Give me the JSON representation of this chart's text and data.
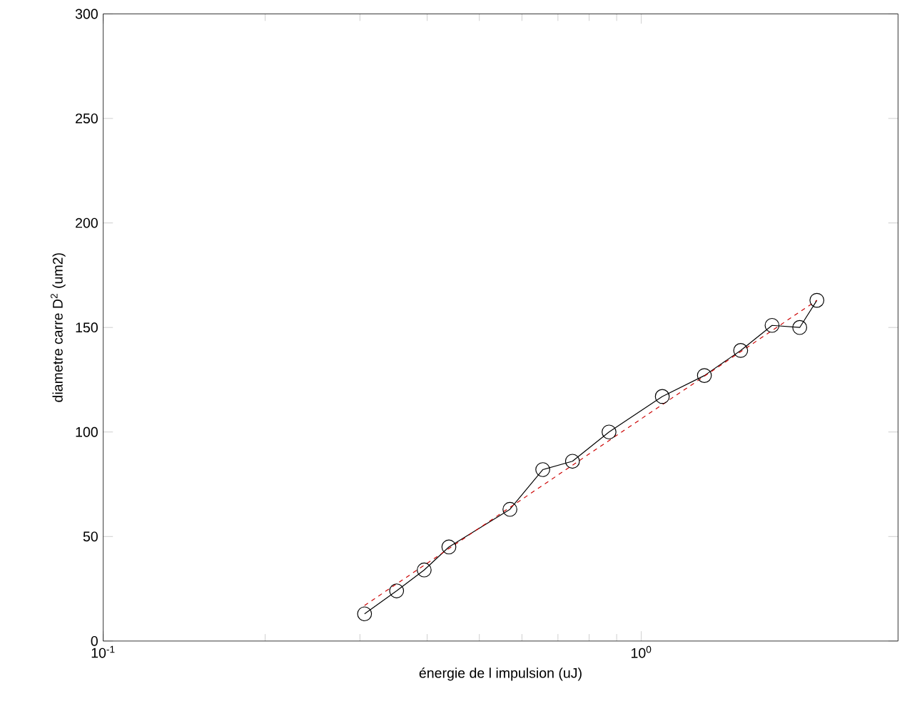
{
  "chart_data": {
    "type": "line",
    "xlabel": "énergie de l impulsion (uJ)",
    "ylabel": "diametre carre D$^{2}$ (um2)",
    "log": "x",
    "xlim": [
      0.1,
      3
    ],
    "ylim": [
      0,
      300
    ],
    "xticks": [
      {
        "value": 0.1,
        "label": "10$^{-1}$"
      },
      {
        "value": 1,
        "label": "10$^{0}$"
      }
    ],
    "yticks": [
      0,
      50,
      100,
      150,
      200,
      250,
      300
    ],
    "grid": false,
    "series": [
      {
        "color": "#000000",
        "marker": "circle",
        "line_style": "solid",
        "x": [
          0.306,
          0.351,
          0.395,
          0.439,
          0.57,
          0.656,
          0.745,
          0.871,
          1.094,
          1.31,
          1.53,
          1.75,
          1.97,
          2.12
        ],
        "values": [
          13,
          24,
          34,
          45,
          63,
          82,
          86,
          100,
          117,
          127,
          139,
          151,
          150,
          163
        ]
      },
      {
        "color": "#cc0000",
        "marker": "none",
        "line_style": "dashed",
        "x": [
          0.306,
          2.12
        ],
        "values": [
          17,
          163
        ]
      }
    ]
  }
}
